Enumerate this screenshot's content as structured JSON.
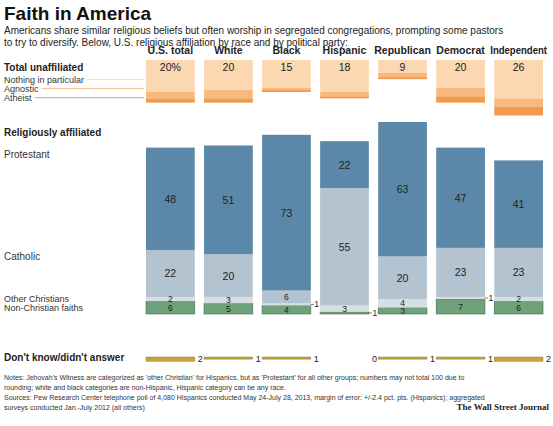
{
  "chart_data": {
    "type": "bar",
    "stacked": true,
    "data_labels": true,
    "title": "Faith in America",
    "subtitle": [
      "Americans share similar religious beliefs but often worship in segregated congregations, prompting some pastors",
      "to try to diversify. Below, U.S. religious affiliation by race and by political party:"
    ],
    "categories": [
      "U.S. total",
      "White",
      "Black",
      "Hispanic",
      "Republican",
      "Democrat",
      "Independent"
    ],
    "sections": [
      {
        "name": "Total unaffiliated",
        "total": {
          "values": [
            20,
            20,
            15,
            18,
            9,
            20,
            26
          ],
          "value_labels": [
            "20%",
            "20",
            "15",
            "18",
            "9",
            "20",
            "26"
          ]
        },
        "series": [
          {
            "name": "Nothing in particular",
            "color": "#fbd8b2",
            "data_labels": false,
            "values": [
              15,
              14,
              13,
              15,
              6,
              13,
              18
            ]
          },
          {
            "name": "Agnostic",
            "color": "#f8b97f",
            "data_labels": false,
            "values": [
              3,
              4,
              1,
              2,
              2,
              4,
              4
            ]
          },
          {
            "name": "Atheist",
            "color": "#f29b4c",
            "data_labels": false,
            "values": [
              2,
              2,
              1,
              1,
              1,
              3,
              4
            ]
          }
        ]
      },
      {
        "name": "Religiously affiliated",
        "series": [
          {
            "name": "Protestant",
            "color": "#5b88a8",
            "values": [
              48,
              51,
              73,
              22,
              63,
              47,
              41
            ]
          },
          {
            "name": "Catholic",
            "color": "#b4c3d0",
            "values": [
              22,
              20,
              6,
              55,
              20,
              23,
              23
            ]
          },
          {
            "name": "Other Christians",
            "color": "#d6dee5",
            "values": [
              2,
              3,
              1,
              3,
              4,
              1,
              2
            ]
          },
          {
            "name": "Non-Christian faiths",
            "color": "#6fa27a",
            "values": [
              6,
              5,
              4,
              1,
              3,
              7,
              6
            ]
          }
        ]
      },
      {
        "name": "Don't know/didn't answer",
        "series": [
          {
            "color": "#c9a23c",
            "values": [
              2,
              1,
              1,
              0,
              1,
              1,
              2
            ]
          }
        ]
      }
    ],
    "notes": [
      "Notes: Jehovah's Witness are categorized as 'other Christian' for Hispanics, but as 'Protestant' for all other groups; numbers may not total 100 due to",
      "rounding; white and black categories are non-Hispanic, Hispanic category can be any race.",
      "Sources: Pew Research Center telephone poll of 4,080 Hispanics conducted May 24-July 28, 2013, margin of error: +/-2.4 pct. pts. (Hispanics); aggregated",
      "surveys conducted Jan.-July 2012  (all others)"
    ],
    "credit": "The Wall Street Journal"
  }
}
